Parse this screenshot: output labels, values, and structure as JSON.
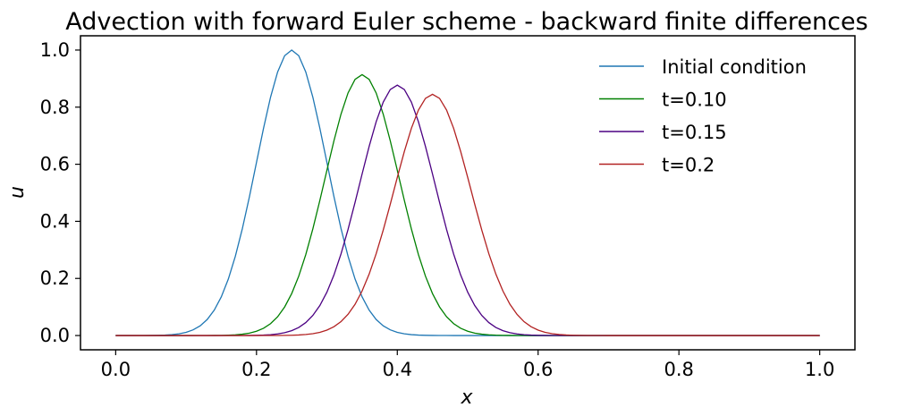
{
  "chart_data": {
    "type": "line",
    "title": "Advection with forward Euler scheme - backward finite differences",
    "xlabel": "x",
    "ylabel": "u",
    "xlim": [
      -0.05,
      1.05
    ],
    "ylim": [
      -0.05,
      1.05
    ],
    "xticks": [
      "0.0",
      "0.2",
      "0.4",
      "0.6",
      "0.8",
      "1.0"
    ],
    "yticks": [
      "0.0",
      "0.2",
      "0.4",
      "0.6",
      "0.8",
      "1.0"
    ],
    "grid": false,
    "legend_position": "top-right",
    "series": [
      {
        "name": "Initial condition",
        "color": "#1f77b4",
        "center": 0.25,
        "peak": 1.0,
        "width": 0.05
      },
      {
        "name": "t=0.10",
        "color": "#008000",
        "center": 0.35,
        "peak": 0.914,
        "width": 0.0523
      },
      {
        "name": "t=0.15",
        "color": "#4b0082",
        "center": 0.4,
        "peak": 0.877,
        "width": 0.0534
      },
      {
        "name": "t=0.2",
        "color": "#b22222",
        "center": 0.45,
        "peak": 0.845,
        "width": 0.0544
      }
    ]
  }
}
